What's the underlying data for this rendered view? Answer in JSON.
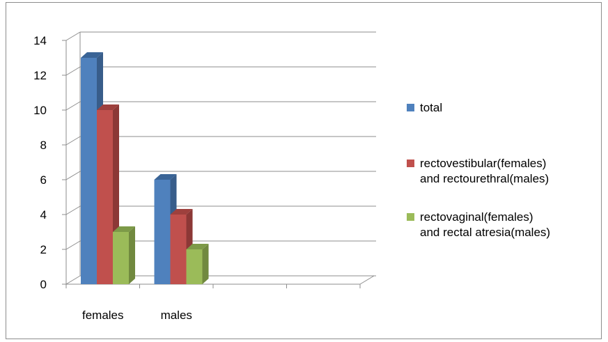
{
  "chart_data": {
    "type": "bar",
    "categories": [
      "females",
      "males"
    ],
    "series": [
      {
        "name": "total",
        "values": [
          13,
          6
        ],
        "color": "#4f81bd",
        "shade": "#385d8a",
        "top": "#3a6496"
      },
      {
        "name": "rectovestibular(females) and rectourethral(males)",
        "legend_lines": [
          "rectovestibular(females)",
          "and rectourethral(males)"
        ],
        "values": [
          10,
          4
        ],
        "color": "#c0504d",
        "shade": "#8c3836",
        "top": "#9e403d"
      },
      {
        "name": "rectovaginal(females) and rectal atresia(males)",
        "legend_lines": [
          "rectovaginal(females)",
          "and rectal atresia(males)"
        ],
        "values": [
          3,
          2
        ],
        "color": "#9bbb59",
        "shade": "#71893f",
        "top": "#7d9a48"
      }
    ],
    "ylim": [
      0,
      14
    ],
    "yticks": [
      "0",
      "2",
      "4",
      "6",
      "8",
      "10",
      "12",
      "14"
    ],
    "grid": true,
    "legend_position": "right",
    "three_d": true
  }
}
